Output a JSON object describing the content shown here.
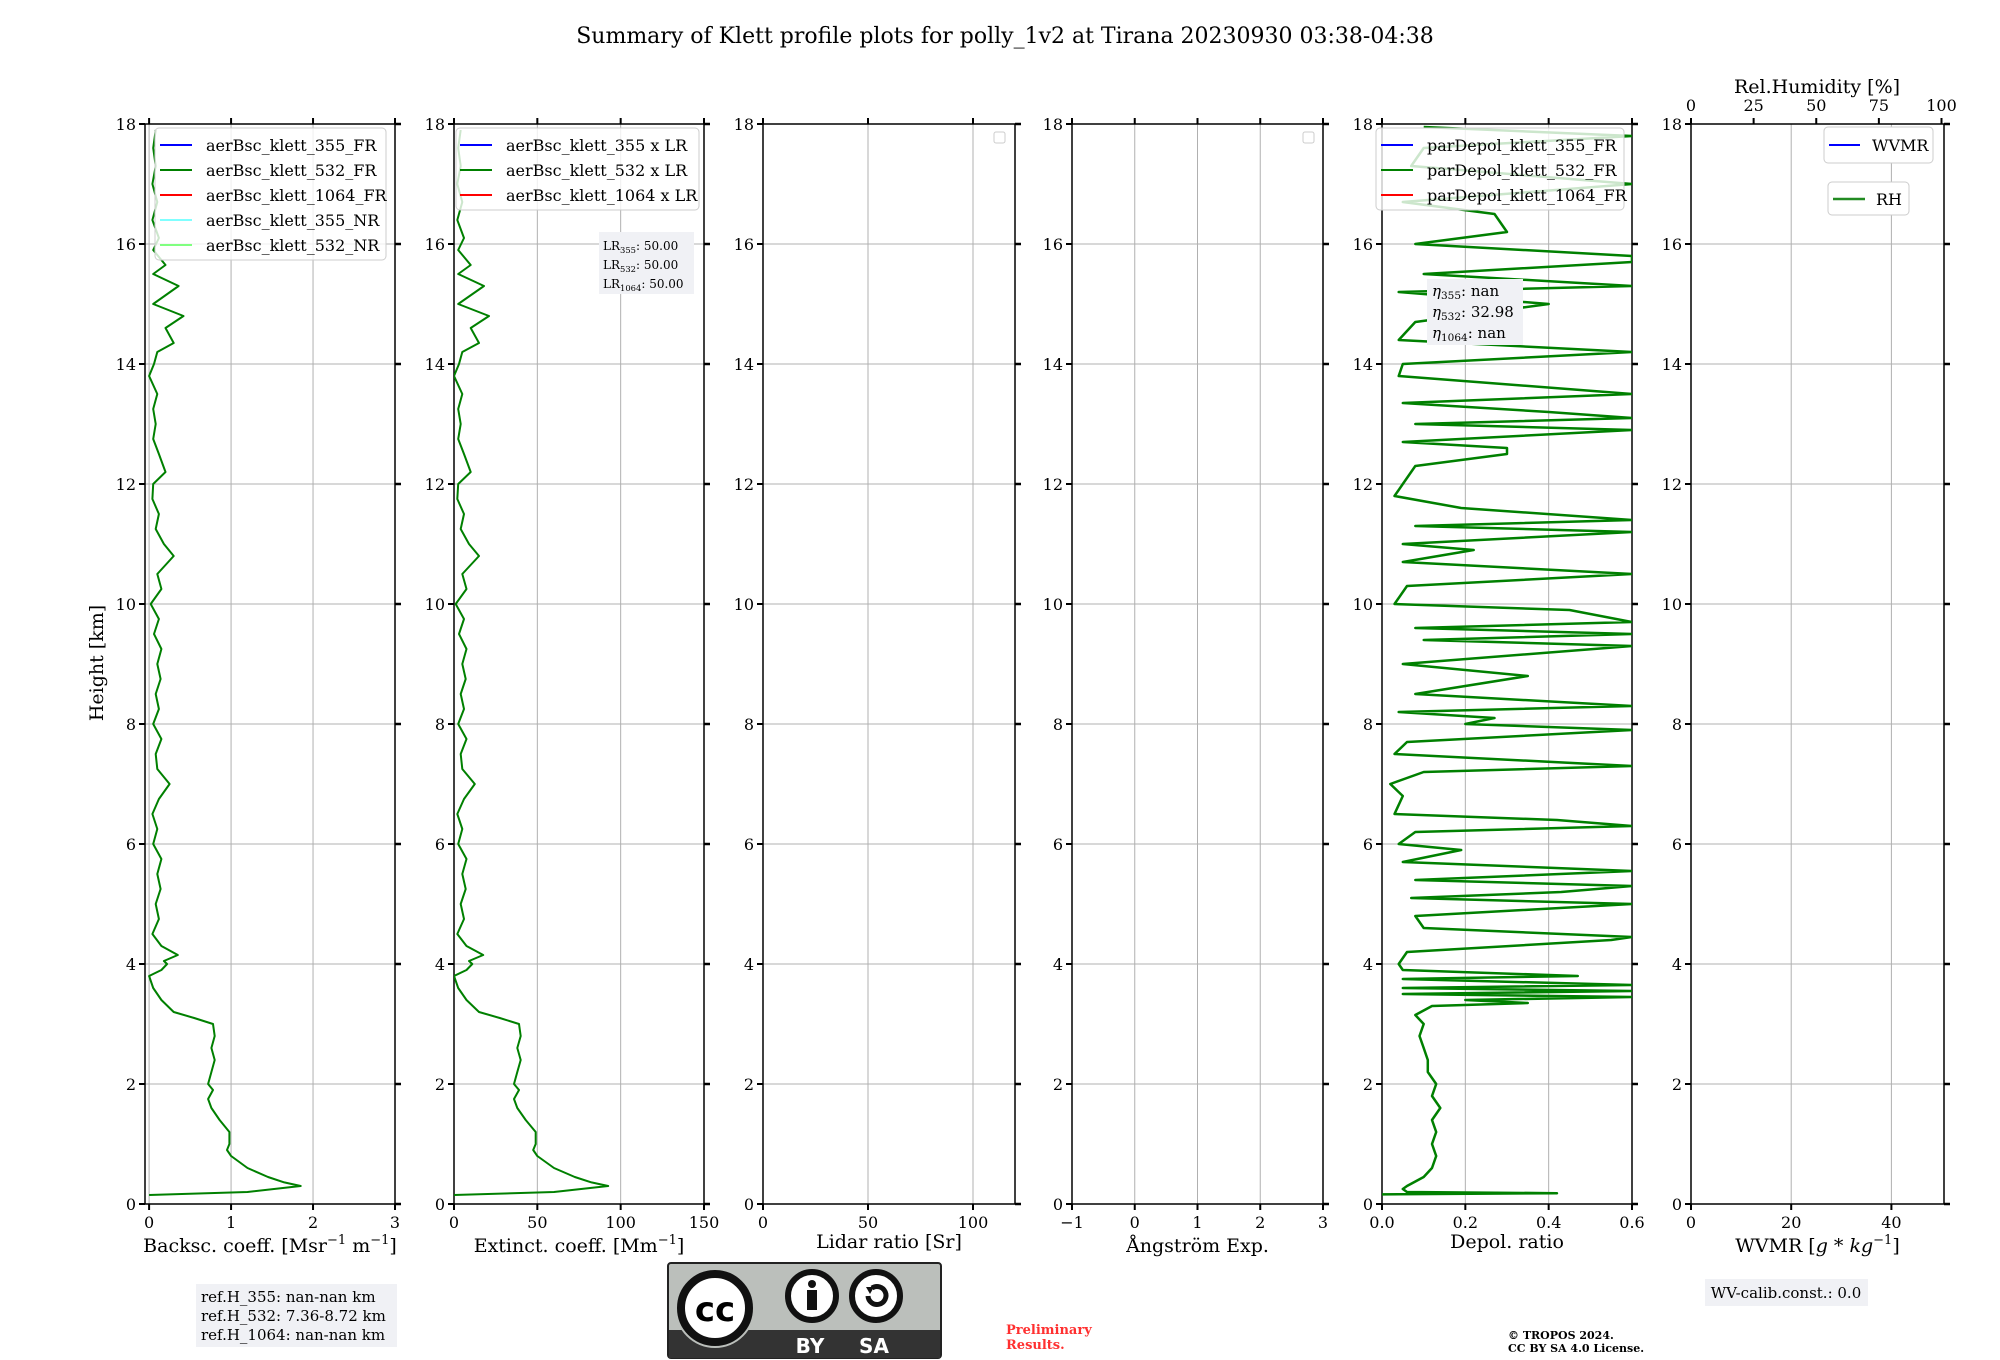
{
  "title": "Summary of Klett profile plots for polly_1v2 at Tirana 20230930 03:38-04:38",
  "colors": {
    "line_532": "#008000",
    "line_355": "#0000ff",
    "line_1064": "#ff0000",
    "line_355_nr": "#80ffff",
    "line_532_nr": "#80ff80",
    "rh": "#228b22",
    "grid": "#b0b0b0",
    "preliminary": "#ff3030",
    "box_bg": "#f0f1f5"
  },
  "chart_data": {
    "type": "line",
    "ylabel": "Height [km]",
    "ylim": [
      0,
      18
    ],
    "yticks": [
      "0",
      "2",
      "4",
      "6",
      "8",
      "10",
      "12",
      "14",
      "16",
      "18"
    ],
    "panels": [
      {
        "id": "backscatter",
        "xlabel": "Backsc. coeff. [Msr",
        "xlabel_sup1": "−1",
        "xlabel_mid": " m",
        "xlabel_sup2": "−1",
        "xlabel_end": "]",
        "xlim": [
          -0.05,
          3
        ],
        "xticks": [
          0,
          1,
          2,
          3
        ],
        "xtick_labels": [
          "0",
          "1",
          "2",
          "3"
        ],
        "legend": [
          "aerBsc_klett_355_FR",
          "aerBsc_klett_532_FR",
          "aerBsc_klett_1064_FR",
          "aerBsc_klett_355_NR",
          "aerBsc_klett_532_NR"
        ],
        "legend_colors": [
          "#0000ff",
          "#008000",
          "#ff0000",
          "#80ffff",
          "#80ff80"
        ]
      },
      {
        "id": "extinction",
        "xlabel": "Extinct. coeff. [Mm",
        "xlabel_sup1": "−1",
        "xlabel_end": "]",
        "xlim": [
          0,
          150
        ],
        "xticks": [
          0,
          50,
          100,
          150
        ],
        "xtick_labels": [
          "0",
          "50",
          "100",
          "150"
        ],
        "legend": [
          "aerBsc_klett_355 x LR",
          "aerBsc_klett_532 x LR",
          "aerBsc_klett_1064 x LR"
        ],
        "legend_colors": [
          "#0000ff",
          "#008000",
          "#ff0000"
        ],
        "lidar_ratios": [
          {
            "label": "LR",
            "sub": "355",
            "value": ": 50.00"
          },
          {
            "label": "LR",
            "sub": "532",
            "value": ": 50.00"
          },
          {
            "label": "LR",
            "sub": "1064",
            "value": ": 50.00"
          }
        ]
      },
      {
        "id": "lidar_ratio",
        "xlabel": "Lidar ratio [Sr]",
        "xlim": [
          0,
          120
        ],
        "xticks": [
          0,
          50,
          100
        ],
        "xtick_labels": [
          "0",
          "50",
          "100"
        ]
      },
      {
        "id": "angstrom",
        "xlabel": "Ångström Exp.",
        "xlim": [
          -1,
          3
        ],
        "xticks": [
          -1,
          0,
          1,
          2,
          3
        ],
        "xtick_labels": [
          "−1",
          "0",
          "1",
          "2",
          "3"
        ]
      },
      {
        "id": "depol",
        "xlabel": "Depol. ratio",
        "xlim": [
          0,
          0.6
        ],
        "xticks": [
          0,
          0.2,
          0.4,
          0.6
        ],
        "xtick_labels": [
          "0.0",
          "0.2",
          "0.4",
          "0.6"
        ],
        "legend": [
          "parDepol_klett_355_FR",
          "parDepol_klett_532_FR",
          "parDepol_klett_1064_FR"
        ],
        "legend_colors": [
          "#0000ff",
          "#008000",
          "#ff0000"
        ],
        "eta": [
          {
            "label": "η",
            "sub": "355",
            "value": ": nan"
          },
          {
            "label": "η",
            "sub": "532",
            "value": ": 32.98"
          },
          {
            "label": "η",
            "sub": "1064",
            "value": ": nan"
          }
        ]
      },
      {
        "id": "wvmr",
        "xlabel": "WVMR [",
        "xlabel_italic": "g * kg",
        "xlabel_sup1": "−1",
        "xlabel_end": "]",
        "xlim": [
          0,
          50.5
        ],
        "xticks": [
          0,
          20,
          40
        ],
        "xtick_labels": [
          "0",
          "20",
          "40"
        ],
        "top_label": "Rel.Humidity [%]",
        "top_xlim": [
          0,
          101
        ],
        "top_xticks": [
          0,
          25,
          50,
          75,
          100
        ],
        "top_xtick_labels": [
          "0",
          "25",
          "50",
          "75",
          "100"
        ],
        "legend": [
          "WVMR",
          "RH"
        ],
        "legend_colors": [
          "#0000ff",
          "#228b22"
        ]
      }
    ],
    "bsc_532_profile": [
      [
        0.15,
        0.0
      ],
      [
        0.2,
        1.2
      ],
      [
        0.3,
        1.85
      ],
      [
        0.36,
        1.65
      ],
      [
        0.45,
        1.45
      ],
      [
        0.6,
        1.2
      ],
      [
        0.8,
        1.0
      ],
      [
        0.9,
        0.95
      ],
      [
        1.0,
        0.98
      ],
      [
        1.2,
        0.98
      ],
      [
        1.4,
        0.86
      ],
      [
        1.6,
        0.76
      ],
      [
        1.75,
        0.72
      ],
      [
        1.9,
        0.78
      ],
      [
        2.0,
        0.72
      ],
      [
        2.2,
        0.76
      ],
      [
        2.4,
        0.8
      ],
      [
        2.6,
        0.76
      ],
      [
        2.8,
        0.8
      ],
      [
        3.0,
        0.78
      ],
      [
        3.1,
        0.55
      ],
      [
        3.2,
        0.3
      ],
      [
        3.4,
        0.15
      ],
      [
        3.6,
        0.05
      ],
      [
        3.8,
        0.0
      ],
      [
        3.9,
        0.15
      ],
      [
        4.0,
        0.22
      ],
      [
        4.05,
        0.18
      ],
      [
        4.15,
        0.35
      ],
      [
        4.3,
        0.15
      ],
      [
        4.5,
        0.04
      ],
      [
        4.75,
        0.12
      ],
      [
        5.0,
        0.08
      ],
      [
        5.25,
        0.14
      ],
      [
        5.5,
        0.1
      ],
      [
        5.75,
        0.15
      ],
      [
        6.0,
        0.05
      ],
      [
        6.25,
        0.1
      ],
      [
        6.5,
        0.04
      ],
      [
        6.75,
        0.12
      ],
      [
        7.0,
        0.25
      ],
      [
        7.25,
        0.1
      ],
      [
        7.5,
        0.08
      ],
      [
        7.75,
        0.15
      ],
      [
        8.0,
        0.05
      ],
      [
        8.25,
        0.12
      ],
      [
        8.5,
        0.08
      ],
      [
        8.75,
        0.14
      ],
      [
        9.0,
        0.1
      ],
      [
        9.25,
        0.15
      ],
      [
        9.5,
        0.06
      ],
      [
        9.75,
        0.12
      ],
      [
        10.0,
        0.02
      ],
      [
        10.25,
        0.15
      ],
      [
        10.5,
        0.1
      ],
      [
        10.8,
        0.3
      ],
      [
        11.0,
        0.18
      ],
      [
        11.25,
        0.08
      ],
      [
        11.5,
        0.12
      ],
      [
        11.75,
        0.04
      ],
      [
        12.0,
        0.05
      ],
      [
        12.2,
        0.2
      ],
      [
        12.5,
        0.12
      ],
      [
        12.75,
        0.05
      ],
      [
        13.0,
        0.08
      ],
      [
        13.25,
        0.05
      ],
      [
        13.5,
        0.1
      ],
      [
        13.8,
        0.0
      ],
      [
        14.0,
        0.06
      ],
      [
        14.2,
        0.1
      ],
      [
        14.35,
        0.3
      ],
      [
        14.6,
        0.2
      ],
      [
        14.8,
        0.42
      ],
      [
        15.0,
        0.05
      ],
      [
        15.3,
        0.36
      ],
      [
        15.5,
        0.05
      ],
      [
        15.65,
        0.2
      ],
      [
        15.9,
        0.05
      ],
      [
        16.1,
        0.12
      ],
      [
        16.4,
        0.04
      ],
      [
        16.7,
        0.1
      ],
      [
        17.0,
        0.04
      ],
      [
        17.3,
        0.08
      ],
      [
        17.6,
        0.05
      ],
      [
        17.9,
        0.08
      ]
    ],
    "depol_532_profile": [
      [
        0.16,
        0.0
      ],
      [
        0.18,
        0.42
      ],
      [
        0.2,
        0.06
      ],
      [
        0.25,
        0.05
      ],
      [
        0.3,
        0.06
      ],
      [
        0.45,
        0.1
      ],
      [
        0.6,
        0.12
      ],
      [
        0.8,
        0.13
      ],
      [
        1.0,
        0.12
      ],
      [
        1.2,
        0.13
      ],
      [
        1.4,
        0.12
      ],
      [
        1.6,
        0.14
      ],
      [
        1.8,
        0.12
      ],
      [
        2.0,
        0.13
      ],
      [
        2.2,
        0.11
      ],
      [
        2.4,
        0.11
      ],
      [
        2.6,
        0.1
      ],
      [
        2.8,
        0.09
      ],
      [
        3.0,
        0.1
      ],
      [
        3.15,
        0.08
      ],
      [
        3.3,
        0.12
      ],
      [
        3.35,
        0.35
      ],
      [
        3.4,
        0.2
      ],
      [
        3.45,
        0.6
      ],
      [
        3.5,
        0.05
      ],
      [
        3.55,
        0.6
      ],
      [
        3.6,
        0.05
      ],
      [
        3.65,
        0.6
      ],
      [
        3.75,
        0.05
      ],
      [
        3.8,
        0.47
      ],
      [
        3.9,
        0.05
      ],
      [
        4.0,
        0.04
      ],
      [
        4.2,
        0.06
      ],
      [
        4.4,
        0.55
      ],
      [
        4.45,
        0.6
      ],
      [
        4.6,
        0.1
      ],
      [
        4.8,
        0.08
      ],
      [
        5.0,
        0.6
      ],
      [
        5.1,
        0.07
      ],
      [
        5.2,
        0.43
      ],
      [
        5.3,
        0.6
      ],
      [
        5.4,
        0.08
      ],
      [
        5.55,
        0.6
      ],
      [
        5.7,
        0.05
      ],
      [
        5.9,
        0.19
      ],
      [
        6.0,
        0.04
      ],
      [
        6.2,
        0.08
      ],
      [
        6.3,
        0.6
      ],
      [
        6.4,
        0.42
      ],
      [
        6.5,
        0.03
      ],
      [
        6.8,
        0.05
      ],
      [
        7.0,
        0.02
      ],
      [
        7.2,
        0.1
      ],
      [
        7.3,
        0.6
      ],
      [
        7.5,
        0.03
      ],
      [
        7.7,
        0.06
      ],
      [
        7.9,
        0.6
      ],
      [
        8.0,
        0.2
      ],
      [
        8.1,
        0.27
      ],
      [
        8.2,
        0.04
      ],
      [
        8.3,
        0.6
      ],
      [
        8.5,
        0.08
      ],
      [
        8.8,
        0.35
      ],
      [
        9.0,
        0.05
      ],
      [
        9.3,
        0.6
      ],
      [
        9.4,
        0.1
      ],
      [
        9.5,
        0.6
      ],
      [
        9.6,
        0.08
      ],
      [
        9.7,
        0.6
      ],
      [
        9.9,
        0.45
      ],
      [
        10.0,
        0.03
      ],
      [
        10.3,
        0.06
      ],
      [
        10.5,
        0.6
      ],
      [
        10.7,
        0.05
      ],
      [
        10.9,
        0.22
      ],
      [
        11.0,
        0.05
      ],
      [
        11.2,
        0.6
      ],
      [
        11.3,
        0.08
      ],
      [
        11.4,
        0.6
      ],
      [
        11.6,
        0.19
      ],
      [
        11.8,
        0.03
      ],
      [
        12.0,
        0.05
      ],
      [
        12.3,
        0.08
      ],
      [
        12.5,
        0.3
      ],
      [
        12.6,
        0.3
      ],
      [
        12.7,
        0.05
      ],
      [
        12.9,
        0.6
      ],
      [
        13.0,
        0.08
      ],
      [
        13.1,
        0.6
      ],
      [
        13.2,
        0.4
      ],
      [
        13.35,
        0.05
      ],
      [
        13.5,
        0.6
      ],
      [
        13.8,
        0.04
      ],
      [
        14.0,
        0.05
      ],
      [
        14.2,
        0.6
      ],
      [
        14.4,
        0.04
      ],
      [
        14.7,
        0.08
      ],
      [
        15.0,
        0.4
      ],
      [
        15.2,
        0.04
      ],
      [
        15.3,
        0.6
      ],
      [
        15.5,
        0.1
      ],
      [
        15.7,
        0.6
      ],
      [
        15.8,
        0.6
      ],
      [
        16.0,
        0.08
      ],
      [
        16.2,
        0.3
      ],
      [
        16.5,
        0.27
      ],
      [
        16.7,
        0.05
      ],
      [
        17.0,
        0.6
      ],
      [
        17.3,
        0.07
      ],
      [
        17.6,
        0.1
      ],
      [
        17.8,
        0.6
      ],
      [
        17.95,
        0.1
      ]
    ]
  },
  "ref_heights": [
    "ref.H_355: nan-nan km",
    "ref.H_532: 7.36-8.72 km",
    "ref.H_1064: nan-nan km"
  ],
  "wv_calib": "WV-calib.const.: 0.0",
  "license_logo": {
    "text_cc": "cc",
    "text_by": "BY",
    "text_sa": "SA"
  },
  "preliminary": [
    "Preliminary",
    "Results."
  ],
  "copyright": [
    "© TROPOS 2024.",
    "CC BY SA 4.0 License."
  ]
}
